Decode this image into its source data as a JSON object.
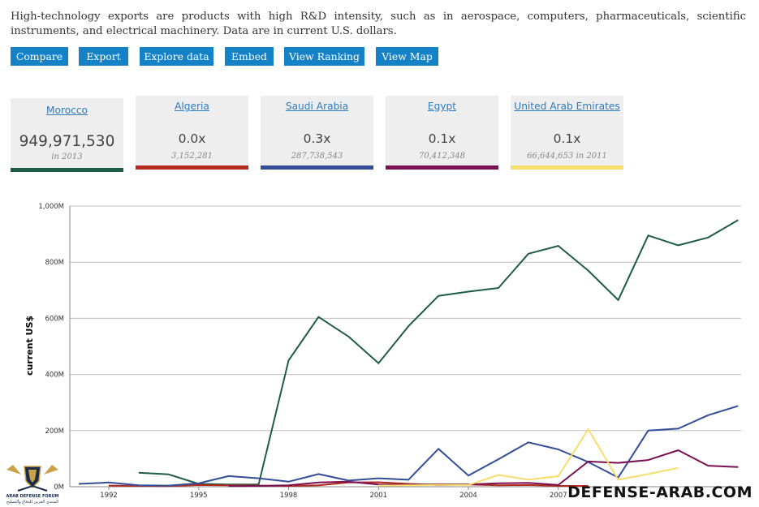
{
  "description": "High-technology exports are products with high R&D intensity, such as in aerospace, computers, pharmaceuticals, scientific instruments, and electrical machinery. Data are in current U.S. dollars.",
  "buttons": [
    "Compare",
    "Export",
    "Explore data",
    "Embed",
    "View Ranking",
    "View Map"
  ],
  "cards": [
    {
      "name": "Morocco",
      "value": "949,971,530",
      "sub": "in 2013",
      "color": "#1e5c45"
    },
    {
      "name": "Algeria",
      "value": "0.0x",
      "sub": "3,152,281",
      "color": "#b5291e"
    },
    {
      "name": "Saudi Arabia",
      "value": "0.3x",
      "sub": "287,738,543",
      "color": "#334d99"
    },
    {
      "name": "Egypt",
      "value": "0.1x",
      "sub": "70,412,348",
      "color": "#7a0f52"
    },
    {
      "name": "United Arab Emirates",
      "value": "0.1x",
      "sub": "66,644,653 in 2011",
      "color": "#f7dd6a"
    }
  ],
  "watermark": {
    "text": "DEFENSE-ARAB.COM",
    "logo_line1": "ARAB DEFENSE FORUM",
    "logo_line2": "المنتدى العربي للدفاع والتسليح"
  },
  "chart_data": {
    "type": "line",
    "ylabel": "current US$",
    "xlabel": "",
    "ylim": [
      0,
      1000000000
    ],
    "xlim": [
      1990.7,
      2013.1
    ],
    "y_ticks": [
      0,
      200000000,
      400000000,
      600000000,
      800000000,
      1000000000
    ],
    "y_tick_labels": [
      "0M",
      "200M",
      "400M",
      "600M",
      "800M",
      "1,000M"
    ],
    "x_ticks": [
      1992,
      1995,
      1998,
      2001,
      2004,
      2007
    ],
    "x_tick_labels": [
      "1992",
      "1995",
      "1998",
      "2001",
      "2004",
      "2007"
    ],
    "grid": true,
    "series": [
      {
        "name": "Morocco",
        "color": "#1e5c45",
        "points": [
          [
            1993,
            50000000
          ],
          [
            1994,
            44000000
          ],
          [
            1995,
            10000000
          ],
          [
            1996,
            8000000
          ],
          [
            1997,
            8000000
          ],
          [
            1998,
            450000000
          ],
          [
            1999,
            605000000
          ],
          [
            2000,
            535000000
          ],
          [
            2001,
            440000000
          ],
          [
            2002,
            572000000
          ],
          [
            2003,
            680000000
          ],
          [
            2004,
            695000000
          ],
          [
            2005,
            708000000
          ],
          [
            2006,
            830000000
          ],
          [
            2007,
            858000000
          ],
          [
            2008,
            770000000
          ],
          [
            2009,
            665000000
          ],
          [
            2010,
            895000000
          ],
          [
            2011,
            860000000
          ],
          [
            2012,
            888000000
          ],
          [
            2013,
            950000000
          ]
        ]
      },
      {
        "name": "Algeria",
        "color": "#b5291e",
        "points": [
          [
            1992,
            4000000
          ],
          [
            1993,
            3000000
          ],
          [
            1994,
            2000000
          ],
          [
            1995,
            6000000
          ],
          [
            1996,
            5000000
          ],
          [
            1997,
            4000000
          ],
          [
            1998,
            3000000
          ],
          [
            1999,
            5000000
          ],
          [
            2000,
            15000000
          ],
          [
            2001,
            16000000
          ],
          [
            2002,
            10000000
          ],
          [
            2003,
            6000000
          ],
          [
            2004,
            8000000
          ],
          [
            2005,
            5000000
          ],
          [
            2006,
            6000000
          ],
          [
            2007,
            3000000
          ],
          [
            2008,
            3000000
          ]
        ]
      },
      {
        "name": "Saudi Arabia",
        "color": "#334d99",
        "points": [
          [
            1991,
            10000000
          ],
          [
            1992,
            15000000
          ],
          [
            1993,
            5000000
          ],
          [
            1994,
            4000000
          ],
          [
            1995,
            12000000
          ],
          [
            1996,
            38000000
          ],
          [
            1997,
            30000000
          ],
          [
            1998,
            18000000
          ],
          [
            1999,
            45000000
          ],
          [
            2000,
            22000000
          ],
          [
            2001,
            30000000
          ],
          [
            2002,
            25000000
          ],
          [
            2003,
            135000000
          ],
          [
            2004,
            40000000
          ],
          [
            2005,
            98000000
          ],
          [
            2006,
            158000000
          ],
          [
            2007,
            133000000
          ],
          [
            2008,
            88000000
          ],
          [
            2009,
            33000000
          ],
          [
            2010,
            200000000
          ],
          [
            2011,
            207000000
          ],
          [
            2012,
            255000000
          ],
          [
            2013,
            288000000
          ]
        ]
      },
      {
        "name": "Egypt",
        "color": "#7a0f52",
        "points": [
          [
            1996,
            2000000
          ],
          [
            1997,
            3000000
          ],
          [
            1998,
            5000000
          ],
          [
            1999,
            15000000
          ],
          [
            2000,
            18000000
          ],
          [
            2001,
            8000000
          ],
          [
            2002,
            7000000
          ],
          [
            2003,
            9000000
          ],
          [
            2004,
            8000000
          ],
          [
            2005,
            12000000
          ],
          [
            2006,
            14000000
          ],
          [
            2007,
            6000000
          ],
          [
            2008,
            90000000
          ],
          [
            2009,
            85000000
          ],
          [
            2010,
            95000000
          ],
          [
            2011,
            130000000
          ],
          [
            2012,
            75000000
          ],
          [
            2013,
            70000000
          ]
        ]
      },
      {
        "name": "United Arab Emirates",
        "color": "#f7dd6a",
        "points": [
          [
            2001,
            4000000
          ],
          [
            2002,
            5000000
          ],
          [
            2003,
            7000000
          ],
          [
            2004,
            6000000
          ],
          [
            2005,
            42000000
          ],
          [
            2006,
            25000000
          ],
          [
            2007,
            38000000
          ],
          [
            2008,
            205000000
          ],
          [
            2009,
            25000000
          ],
          [
            2010,
            45000000
          ],
          [
            2011,
            67000000
          ]
        ]
      }
    ]
  }
}
